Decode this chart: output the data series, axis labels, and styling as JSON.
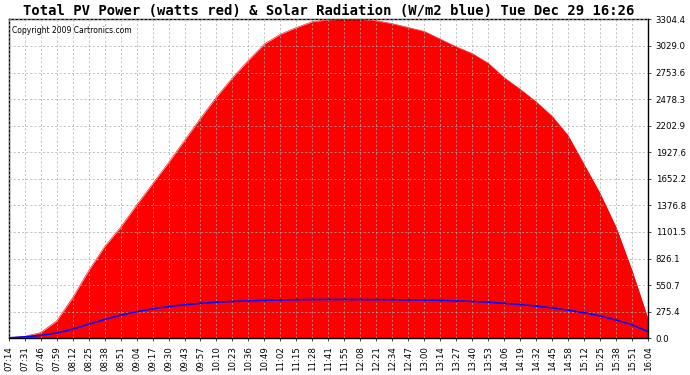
{
  "title": "Total PV Power (watts red) & Solar Radiation (W/m2 blue) Tue Dec 29 16:26",
  "copyright": "Copyright 2009 Cartronics.com",
  "y_max": 3304.4,
  "y_ticks": [
    0.0,
    275.4,
    550.7,
    826.1,
    1101.5,
    1376.8,
    1652.2,
    1927.6,
    2202.9,
    2478.3,
    2753.6,
    3029.0,
    3304.4
  ],
  "x_labels": [
    "07:14",
    "07:31",
    "07:46",
    "07:59",
    "08:12",
    "08:25",
    "08:38",
    "08:51",
    "09:04",
    "09:17",
    "09:30",
    "09:43",
    "09:57",
    "10:10",
    "10:23",
    "10:36",
    "10:49",
    "11:02",
    "11:15",
    "11:28",
    "11:41",
    "11:55",
    "12:08",
    "12:21",
    "12:34",
    "12:47",
    "13:00",
    "13:14",
    "13:27",
    "13:40",
    "13:53",
    "14:06",
    "14:19",
    "14:32",
    "14:45",
    "14:58",
    "15:12",
    "15:25",
    "15:38",
    "15:51",
    "16:04"
  ],
  "background_color": "#ffffff",
  "plot_bg_color": "#ffffff",
  "grid_color": "#aaaaaa",
  "red_color": "#ff0000",
  "blue_color": "#0000ff",
  "title_fontsize": 10,
  "tick_fontsize": 6.2,
  "pv_power": [
    5,
    20,
    60,
    180,
    420,
    700,
    950,
    1150,
    1380,
    1600,
    1820,
    2050,
    2280,
    2500,
    2700,
    2880,
    3050,
    3150,
    3220,
    3280,
    3300,
    3304,
    3304,
    3290,
    3260,
    3220,
    3180,
    3100,
    3020,
    2950,
    2850,
    2700,
    2580,
    2450,
    2300,
    2100,
    1800,
    1500,
    1150,
    700,
    200
  ],
  "solar_rad": [
    5,
    15,
    30,
    55,
    95,
    145,
    195,
    240,
    275,
    305,
    328,
    348,
    363,
    374,
    382,
    388,
    393,
    397,
    400,
    402,
    403,
    403,
    402,
    401,
    400,
    398,
    396,
    393,
    388,
    382,
    374,
    363,
    350,
    334,
    315,
    292,
    265,
    232,
    190,
    140,
    70
  ]
}
